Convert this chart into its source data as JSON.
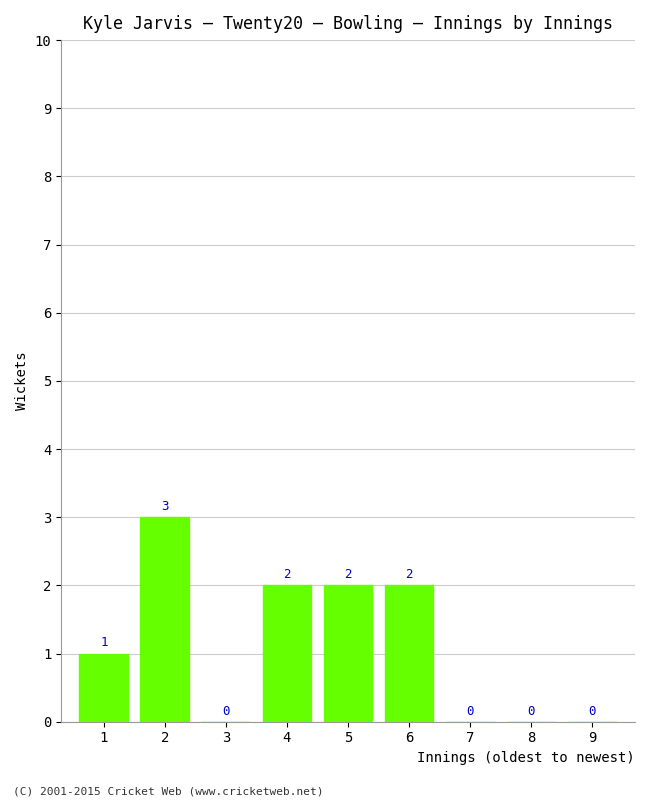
{
  "title": "Kyle Jarvis – Twenty20 – Bowling – Innings by Innings",
  "xlabel": "Innings (oldest to newest)",
  "ylabel": "Wickets",
  "categories": [
    1,
    2,
    3,
    4,
    5,
    6,
    7,
    8,
    9
  ],
  "values": [
    1,
    3,
    0,
    2,
    2,
    2,
    0,
    0,
    0
  ],
  "bar_color": "#66ff00",
  "bar_edge_color": "#66ff00",
  "label_color": "#0000cc",
  "ylim": [
    0,
    10
  ],
  "yticks": [
    0,
    1,
    2,
    3,
    4,
    5,
    6,
    7,
    8,
    9,
    10
  ],
  "xticks": [
    1,
    2,
    3,
    4,
    5,
    6,
    7,
    8,
    9
  ],
  "background_color": "#ffffff",
  "plot_bg_color": "#ffffff",
  "grid_color": "#cccccc",
  "title_fontsize": 12,
  "axis_label_fontsize": 10,
  "tick_fontsize": 10,
  "label_fontsize": 9,
  "footer": "(C) 2001-2015 Cricket Web (www.cricketweb.net)"
}
